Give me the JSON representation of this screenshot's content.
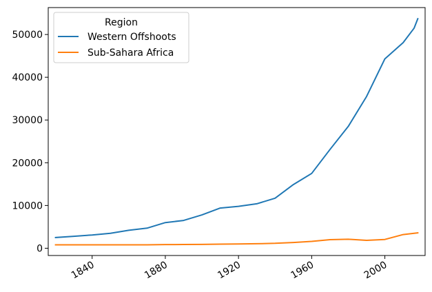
{
  "chart_data": {
    "type": "line",
    "title": "",
    "xlabel": "",
    "ylabel": "",
    "xlim": [
      1816,
      2022
    ],
    "ylim": [
      -1700,
      56300
    ],
    "x_ticks": [
      "1840",
      "1880",
      "1920",
      "1960",
      "2000"
    ],
    "y_ticks": [
      "0",
      "10000",
      "20000",
      "30000",
      "40000",
      "50000"
    ],
    "grid": false,
    "legend": {
      "title": "Region",
      "placement": "top-left"
    },
    "series": [
      {
        "name": "Western Offshoots",
        "color": "#1f77b4",
        "x": [
          1820,
          1830,
          1840,
          1850,
          1860,
          1870,
          1880,
          1890,
          1900,
          1910,
          1920,
          1930,
          1940,
          1950,
          1960,
          1970,
          1980,
          1990,
          2000,
          2010,
          2016,
          2018
        ],
        "y": [
          2500,
          2800,
          3100,
          3500,
          4200,
          4700,
          6000,
          6500,
          7800,
          9400,
          9800,
          10400,
          11700,
          14900,
          17500,
          23100,
          28500,
          35500,
          44300,
          48100,
          51500,
          53700
        ]
      },
      {
        "name": "Sub-Sahara Africa",
        "color": "#ff7f0e",
        "x": [
          1820,
          1830,
          1840,
          1850,
          1860,
          1870,
          1880,
          1890,
          1900,
          1910,
          1920,
          1930,
          1940,
          1950,
          1960,
          1970,
          1980,
          1990,
          2000,
          2010,
          2018
        ],
        "y": [
          800,
          800,
          800,
          800,
          800,
          800,
          850,
          880,
          900,
          950,
          1000,
          1050,
          1150,
          1350,
          1600,
          2000,
          2100,
          1850,
          2050,
          3200,
          3600
        ]
      }
    ]
  }
}
